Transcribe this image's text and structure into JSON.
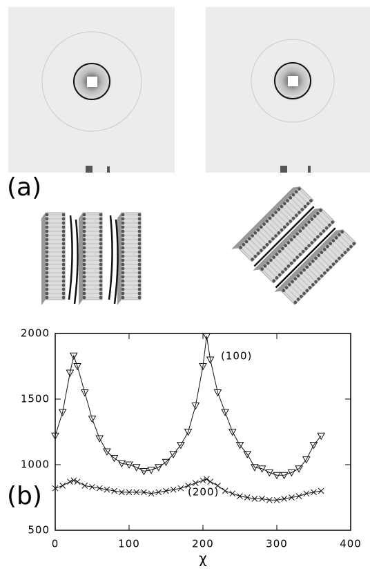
{
  "panel_a_label": "(a)",
  "panel_b_label": "(b)",
  "chart_data": {
    "type": "line",
    "xlabel": "χ",
    "xlim": [
      0,
      400
    ],
    "xticks": [
      0,
      100,
      200,
      300,
      400
    ],
    "ylim": [
      500,
      2000
    ],
    "yticks": [
      500,
      1000,
      1500,
      2000
    ],
    "annotations": [
      "(100)",
      "(200)"
    ],
    "x": [
      0,
      10,
      20,
      25,
      30,
      40,
      50,
      60,
      70,
      80,
      90,
      100,
      110,
      120,
      130,
      140,
      150,
      160,
      170,
      180,
      190,
      200,
      205,
      210,
      220,
      230,
      240,
      250,
      260,
      270,
      280,
      290,
      300,
      310,
      320,
      330,
      340,
      350,
      360
    ],
    "series": [
      {
        "name": "(100)",
        "color": "#111111",
        "marker": "triangle",
        "values": [
          1220,
          1400,
          1700,
          1830,
          1750,
          1550,
          1350,
          1200,
          1100,
          1050,
          1010,
          1000,
          980,
          950,
          960,
          980,
          1020,
          1080,
          1150,
          1250,
          1450,
          1750,
          1980,
          1800,
          1550,
          1400,
          1250,
          1150,
          1080,
          980,
          970,
          940,
          920,
          920,
          940,
          970,
          1040,
          1150,
          1220
        ]
      },
      {
        "name": "(200)",
        "color": "#111111",
        "marker": "cross",
        "values": [
          820,
          840,
          870,
          880,
          870,
          840,
          830,
          820,
          810,
          800,
          790,
          790,
          790,
          790,
          780,
          790,
          800,
          810,
          820,
          840,
          860,
          880,
          890,
          870,
          840,
          800,
          780,
          760,
          750,
          740,
          740,
          730,
          730,
          740,
          750,
          760,
          780,
          790,
          800
        ]
      }
    ]
  }
}
